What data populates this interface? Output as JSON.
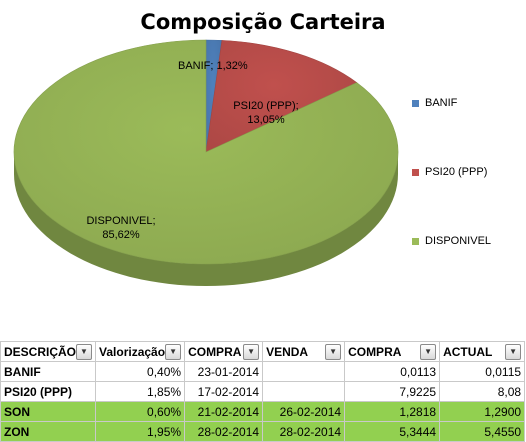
{
  "chart_data": {
    "type": "pie",
    "title": "Composição Carteira",
    "slices": [
      {
        "name": "BANIF",
        "value": 1.32,
        "label": "BANIF; 1,32%",
        "color": "#4f81bd"
      },
      {
        "name": "PSI20 (PPP)",
        "value": 13.05,
        "label_line1": "PSI20 (PPP);",
        "label_line2": "13,05%",
        "color": "#c0504d"
      },
      {
        "name": "DISPONIVEL",
        "value": 85.62,
        "label_line1": "DISPONIVEL;",
        "label_line2": "85,62%",
        "color": "#9bbb59"
      }
    ],
    "legend": [
      {
        "label": "BANIF",
        "color": "#4f81bd"
      },
      {
        "label": "PSI20 (PPP)",
        "color": "#c0504d"
      },
      {
        "label": "DISPONIVEL",
        "color": "#9bbb59"
      }
    ],
    "legend_position": "right",
    "style": "3d"
  },
  "table": {
    "headers": [
      "DESCRIÇÃO",
      "Valorização",
      "COMPRA",
      "VENDA",
      "COMPRA",
      "ACTUAL"
    ],
    "rows": [
      {
        "descricao": "BANIF",
        "valorizacao": "0,40%",
        "data_compra": "23-01-2014",
        "data_venda": "",
        "compra": "0,0113",
        "actual": "0,0115",
        "highlight": false
      },
      {
        "descricao": "PSI20 (PPP)",
        "valorizacao": "1,85%",
        "data_compra": "17-02-2014",
        "data_venda": "",
        "compra": "7,9225",
        "actual": "8,08",
        "highlight": false
      },
      {
        "descricao": "SON",
        "valorizacao": "0,60%",
        "data_compra": "21-02-2014",
        "data_venda": "26-02-2014",
        "compra": "1,2818",
        "actual": "1,2900",
        "highlight": true
      },
      {
        "descricao": "ZON",
        "valorizacao": "1,95%",
        "data_compra": "28-02-2014",
        "data_venda": "28-02-2014",
        "compra": "5,3444",
        "actual": "5,4550",
        "highlight": true
      }
    ],
    "highlight_color": "#92d050"
  }
}
